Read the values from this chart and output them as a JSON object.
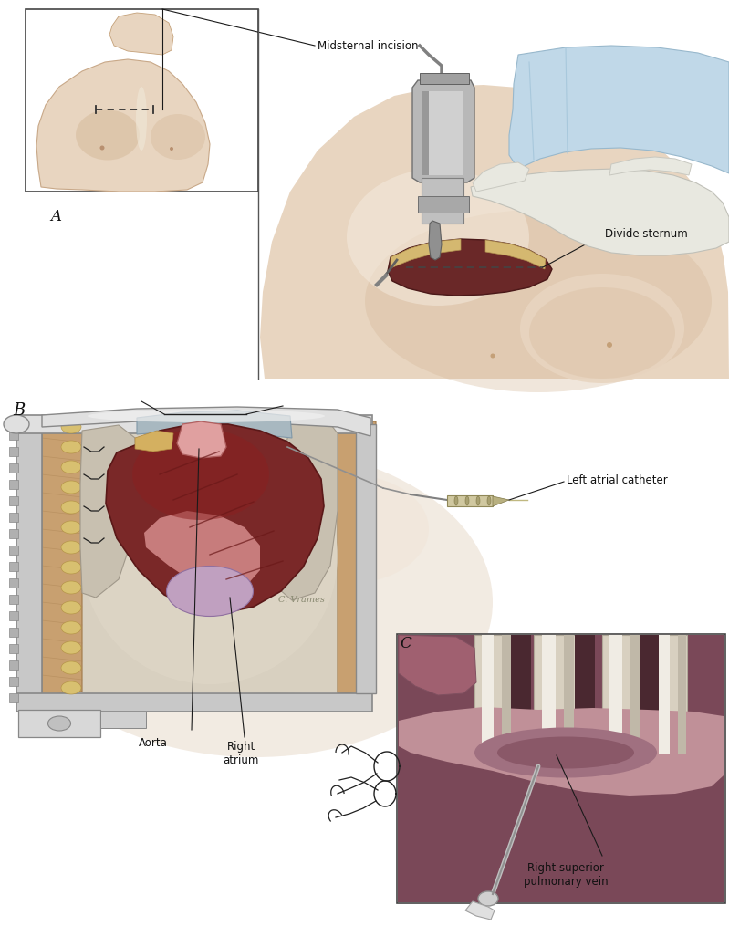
{
  "background_color": "#ffffff",
  "fig_width": 7.99,
  "fig_height": 10.26,
  "dpi": 100,
  "panel_A_label": "A",
  "panel_B_label": "B",
  "panel_C_label": "C",
  "label_midsternal": "Midsternal incision",
  "label_divide_sternum": "Divide sternum",
  "label_left_atrial_catheter": "Left atrial catheter",
  "label_aorta": "Aorta",
  "label_right_atrium": "Right\natrium",
  "label_right_sup_pulm_vein": "Right superior\npulmonary vein",
  "skin_light": "#e8d5c0",
  "skin_mid": "#d4b898",
  "skin_dark": "#c4a078",
  "heart_dark_red": "#7a2828",
  "heart_mid_red": "#a03030",
  "heart_pink": "#c87878",
  "peri_white": "#d8d0c0",
  "peri_grey": "#b0a898",
  "ret_silver": "#c8c8c8",
  "ret_dark": "#888888",
  "ret_light": "#e0e0e0",
  "glove_white": "#e8e8e0",
  "glove_blue": "#c8d8e8",
  "saw_grey": "#b0b0b0",
  "bone_yellow": "#d4b870",
  "wound_dark": "#5a2020",
  "tissue_tan": "#c8a878",
  "tissue_brown": "#8a6040",
  "fat_yellow": "#d8c070",
  "vein_purple": "#9080a0",
  "line_color": "#1a1a1a",
  "suture_color": "#202020"
}
